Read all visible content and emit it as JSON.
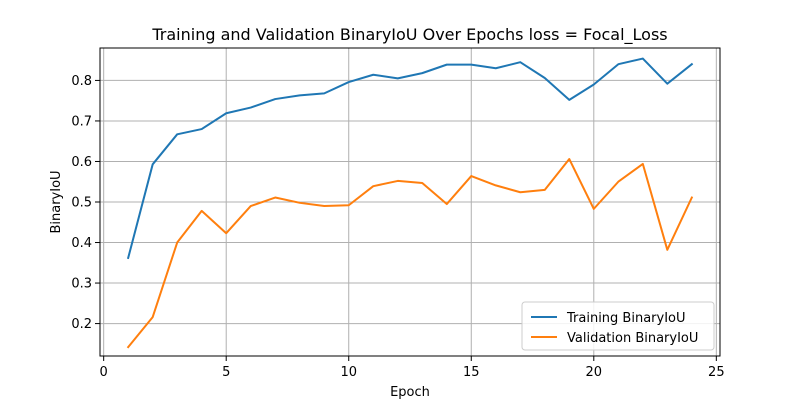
{
  "chart_data": {
    "type": "line",
    "title": "Training and Validation BinaryIoU Over Epochs loss = Focal_Loss",
    "xlabel": "Epoch",
    "ylabel": "BinaryIoU",
    "xlim": [
      -0.15,
      25.15
    ],
    "ylim": [
      0.12,
      0.88
    ],
    "xticks": [
      0,
      5,
      10,
      15,
      20,
      25
    ],
    "yticks": [
      0.2,
      0.3,
      0.4,
      0.5,
      0.6,
      0.7,
      0.8
    ],
    "xtick_labels": [
      "0",
      "5",
      "10",
      "15",
      "20",
      "25"
    ],
    "ytick_labels": [
      "0.2",
      "0.3",
      "0.4",
      "0.5",
      "0.6",
      "0.7",
      "0.8"
    ],
    "grid": true,
    "legend_position": "lower-right",
    "x": [
      1,
      2,
      3,
      4,
      5,
      6,
      7,
      8,
      9,
      10,
      11,
      12,
      13,
      14,
      15,
      16,
      17,
      18,
      19,
      20,
      21,
      22,
      23,
      24
    ],
    "series": [
      {
        "name": "Training BinaryIoU",
        "color": "#1f77b4",
        "values": [
          0.362,
          0.593,
          0.667,
          0.68,
          0.719,
          0.733,
          0.754,
          0.763,
          0.768,
          0.796,
          0.814,
          0.805,
          0.818,
          0.839,
          0.839,
          0.83,
          0.845,
          0.806,
          0.752,
          0.79,
          0.84,
          0.854,
          0.792,
          0.84
        ]
      },
      {
        "name": "Validation BinaryIoU",
        "color": "#ff7f0e",
        "values": [
          0.142,
          0.216,
          0.4,
          0.478,
          0.423,
          0.49,
          0.511,
          0.498,
          0.49,
          0.492,
          0.539,
          0.552,
          0.547,
          0.495,
          0.564,
          0.541,
          0.524,
          0.53,
          0.606,
          0.483,
          0.55,
          0.594,
          0.382,
          0.511
        ]
      }
    ]
  }
}
